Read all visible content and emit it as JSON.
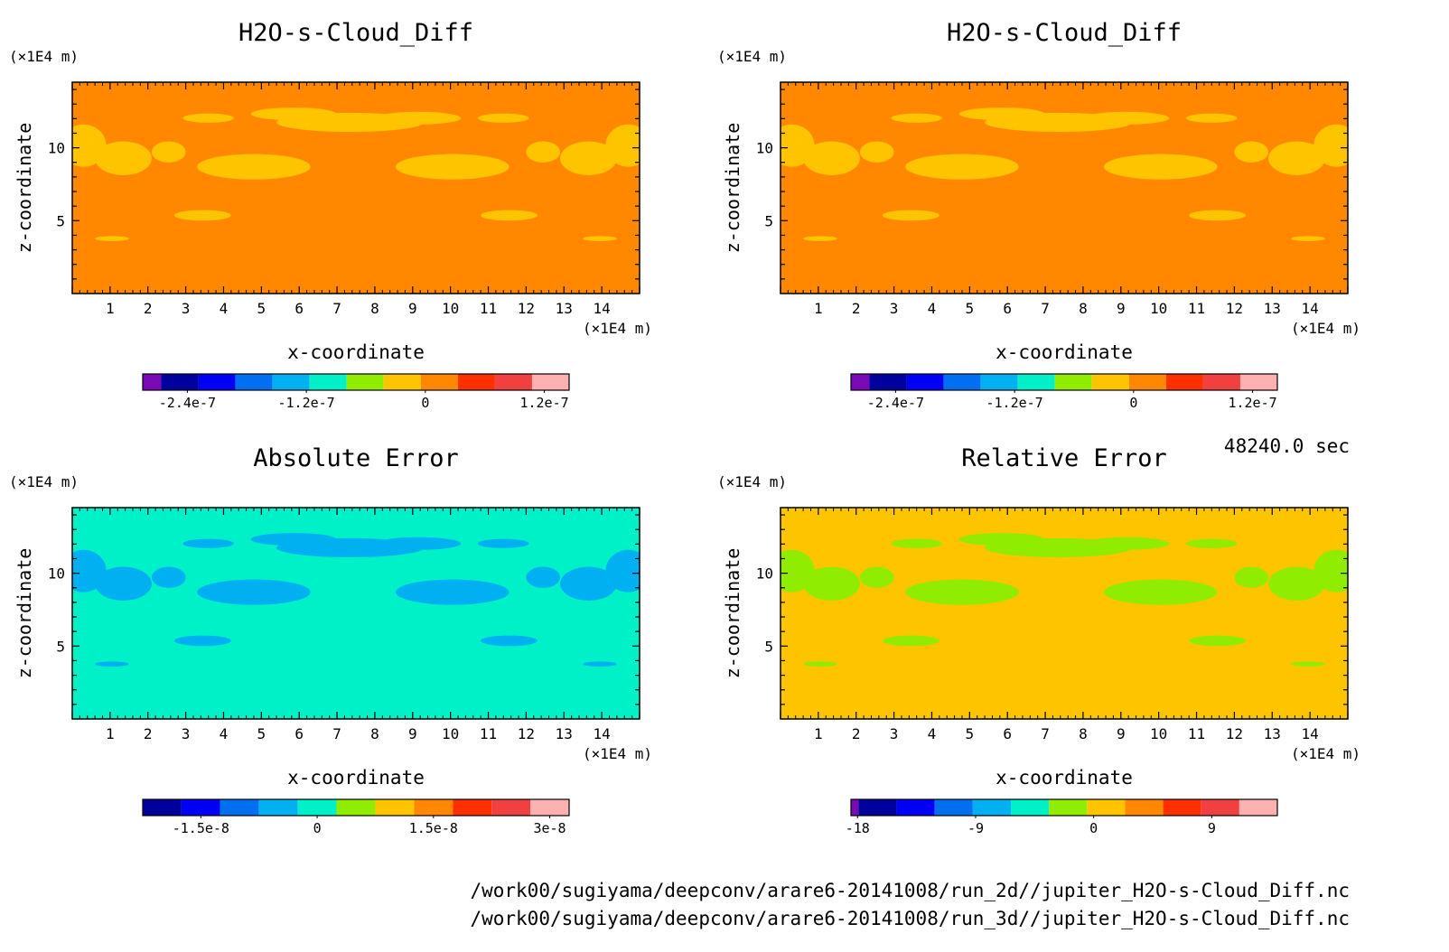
{
  "time_label": "48240.0 sec",
  "file_paths": [
    "/work00/sugiyama/deepconv/arare6-20141008/run_2d//jupiter_H2O-s-Cloud_Diff.nc",
    "/work00/sugiyama/deepconv/arare6-20141008/run_3d//jupiter_H2O-s-Cloud_Diff.nc"
  ],
  "chart_data": [
    {
      "type": "heatmap",
      "title": "H2O-s-Cloud_Diff",
      "xlabel": "x-coordinate",
      "ylabel": "z-coordinate",
      "x_unit": "(×1E4 m)",
      "y_unit": "(×1E4 m)",
      "xlim": [
        0,
        15
      ],
      "ylim": [
        0,
        14.5
      ],
      "xticks": [
        1,
        2,
        3,
        4,
        5,
        6,
        7,
        8,
        9,
        10,
        11,
        12,
        13,
        14
      ],
      "yticks": [
        5,
        10
      ],
      "background_color": "#ff8800",
      "feature_color": "#ffc400",
      "colorbar": {
        "colors": [
          "#7a0ab4",
          "#00009c",
          "#0000f4",
          "#0070f0",
          "#00b0f0",
          "#00f0c8",
          "#90ec00",
          "#ffc400",
          "#ff8800",
          "#ff3000",
          "#f04040",
          "#ffb0b0"
        ],
        "ticks": [
          "-2.4e-7",
          "-1.2e-7",
          "0",
          "1.2e-7"
        ],
        "tick_values": [
          -2.4e-07,
          -1.2e-07,
          0,
          1.2e-07
        ],
        "vmin": -2.85e-07,
        "vmax": 1.45e-07,
        "first_bin_width": 0.5
      }
    },
    {
      "type": "heatmap",
      "title": "H2O-s-Cloud_Diff",
      "xlabel": "x-coordinate",
      "ylabel": "z-coordinate",
      "x_unit": "(×1E4 m)",
      "y_unit": "(×1E4 m)",
      "xlim": [
        0,
        15
      ],
      "ylim": [
        0,
        14.5
      ],
      "xticks": [
        1,
        2,
        3,
        4,
        5,
        6,
        7,
        8,
        9,
        10,
        11,
        12,
        13,
        14
      ],
      "yticks": [
        5,
        10
      ],
      "background_color": "#ff8800",
      "feature_color": "#ffc400",
      "colorbar": {
        "colors": [
          "#7a0ab4",
          "#00009c",
          "#0000f4",
          "#0070f0",
          "#00b0f0",
          "#00f0c8",
          "#90ec00",
          "#ffc400",
          "#ff8800",
          "#ff3000",
          "#f04040",
          "#ffb0b0"
        ],
        "ticks": [
          "-2.4e-7",
          "-1.2e-7",
          "0",
          "1.2e-7"
        ],
        "tick_values": [
          -2.4e-07,
          -1.2e-07,
          0,
          1.2e-07
        ],
        "vmin": -2.85e-07,
        "vmax": 1.45e-07,
        "first_bin_width": 0.5
      }
    },
    {
      "type": "heatmap",
      "title": "Absolute Error",
      "xlabel": "x-coordinate",
      "ylabel": "z-coordinate",
      "x_unit": "(×1E4 m)",
      "y_unit": "(×1E4 m)",
      "xlim": [
        0,
        15
      ],
      "ylim": [
        0,
        14.5
      ],
      "xticks": [
        1,
        2,
        3,
        4,
        5,
        6,
        7,
        8,
        9,
        10,
        11,
        12,
        13,
        14
      ],
      "yticks": [
        5,
        10
      ],
      "background_color": "#00f0c8",
      "feature_color": "#00b0f0",
      "colorbar": {
        "colors": [
          "#00009c",
          "#0000f4",
          "#0070f0",
          "#00b0f0",
          "#00f0c8",
          "#90ec00",
          "#ffc400",
          "#ff8800",
          "#ff3000",
          "#f04040",
          "#ffb0b0"
        ],
        "ticks": [
          "-1.5e-8",
          "0",
          "1.5e-8",
          "3e-8"
        ],
        "tick_values": [
          -1.5e-08,
          0,
          1.5e-08,
          3e-08
        ],
        "vmin": -2.25e-08,
        "vmax": 3.25e-08,
        "first_bin_width": 1
      }
    },
    {
      "type": "heatmap",
      "title": "Relative Error",
      "xlabel": "x-coordinate",
      "ylabel": "z-coordinate",
      "x_unit": "(×1E4 m)",
      "y_unit": "(×1E4 m)",
      "xlim": [
        0,
        15
      ],
      "ylim": [
        0,
        14.5
      ],
      "xticks": [
        1,
        2,
        3,
        4,
        5,
        6,
        7,
        8,
        9,
        10,
        11,
        12,
        13,
        14
      ],
      "yticks": [
        5,
        10
      ],
      "background_color": "#ffc400",
      "feature_color": "#90ec00",
      "colorbar": {
        "colors": [
          "#7a0ab4",
          "#00009c",
          "#0000f4",
          "#0070f0",
          "#00b0f0",
          "#00f0c8",
          "#90ec00",
          "#ffc400",
          "#ff8800",
          "#ff3000",
          "#f04040",
          "#ffb0b0"
        ],
        "ticks": [
          "-18",
          "-9",
          "0",
          "9"
        ],
        "tick_values": [
          -18,
          -9,
          0,
          9
        ],
        "vmin": -18.5,
        "vmax": 14,
        "first_bin_width": 0.2
      }
    }
  ]
}
